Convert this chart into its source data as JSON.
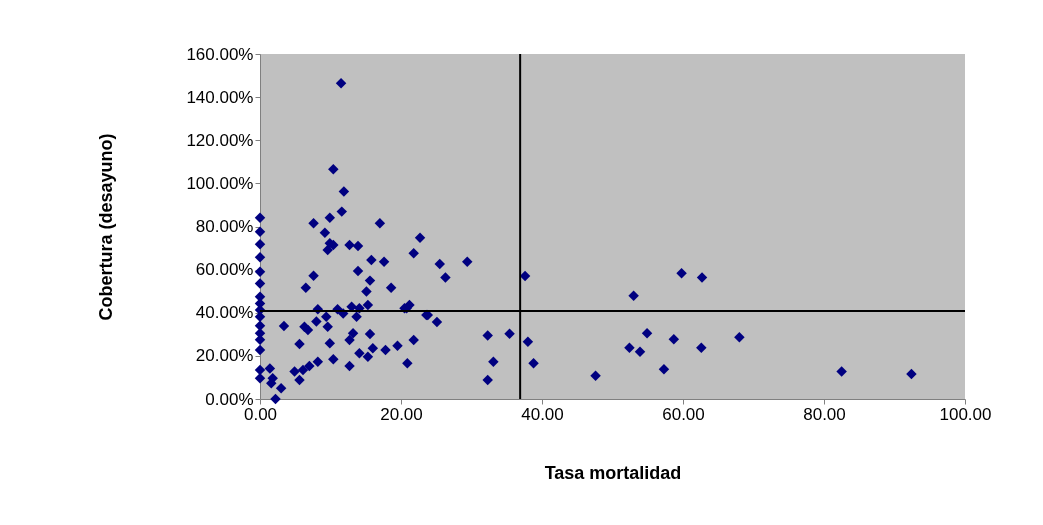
{
  "chart_data": {
    "type": "scatter",
    "xlabel": "Tasa mortalidad",
    "ylabel": "Cobertura (desayuno)",
    "x": [
      0,
      0,
      0,
      0,
      0,
      0,
      0,
      0,
      0,
      0,
      0,
      0,
      0,
      0,
      0,
      0,
      11.5,
      10.4,
      11.9,
      11.6,
      9.9,
      7.6,
      17.0,
      9.2,
      9.9,
      9.6,
      10.4,
      12.7,
      13.9,
      22.7,
      21.8,
      15.8,
      17.6,
      13.9,
      7.6,
      6.5,
      15.6,
      15.1,
      18.6,
      8.2,
      11.0,
      11.8,
      13.0,
      14.1,
      15.3,
      20.5,
      21.2,
      23.8,
      13.7,
      8.0,
      9.4,
      9.6,
      6.3,
      3.4,
      6.8,
      13.2,
      15.6,
      12.7,
      5.6,
      9.9,
      19.5,
      21.8,
      14.1,
      15.3,
      17.8,
      16.0,
      10.4,
      12.7,
      20.9,
      8.2,
      7.0,
      6.1,
      4.9,
      5.6,
      1.4,
      1.8,
      3.0,
      1.6,
      2.2,
      25.5,
      26.3,
      29.4,
      37.6,
      20.8,
      23.6,
      25.1,
      32.3,
      35.4,
      38.0,
      33.1,
      38.8,
      32.3,
      59.8,
      62.7,
      53.0,
      54.9,
      58.7,
      68.0,
      52.4,
      53.9,
      62.6,
      57.3,
      47.6,
      82.5,
      92.4
    ],
    "values": [
      84.1,
      77.6,
      71.8,
      65.7,
      59.0,
      53.6,
      47.4,
      44.3,
      41.3,
      38.2,
      34.0,
      30.5,
      27.5,
      22.7,
      13.5,
      9.6,
      146.4,
      106.5,
      96.2,
      86.9,
      84.1,
      81.5,
      81.5,
      77.1,
      72.2,
      69.1,
      71.4,
      71.4,
      71.0,
      74.8,
      67.6,
      64.5,
      63.7,
      59.4,
      57.2,
      51.6,
      54.9,
      49.8,
      51.6,
      41.6,
      41.6,
      39.7,
      42.8,
      42.1,
      43.6,
      42.1,
      43.6,
      39.0,
      38.2,
      35.9,
      38.2,
      33.5,
      33.5,
      33.9,
      32.0,
      30.5,
      30.1,
      27.4,
      25.5,
      25.8,
      24.7,
      27.4,
      21.2,
      19.6,
      22.7,
      23.5,
      18.4,
      15.3,
      16.6,
      17.3,
      15.3,
      13.5,
      12.7,
      8.8,
      14.2,
      9.6,
      5.0,
      7.3,
      0,
      62.6,
      56.3,
      63.7,
      57.0,
      42.1,
      39.0,
      35.7,
      29.4,
      30.3,
      26.6,
      17.3,
      16.6,
      8.8,
      58.3,
      56.3,
      47.9,
      30.5,
      27.7,
      28.6,
      23.8,
      21.9,
      23.8,
      13.8,
      10.8,
      12.7,
      11.6
    ],
    "color": "#000080",
    "marker": "diamond",
    "xlim": [
      0,
      100
    ],
    "xticks": [
      {
        "value": 0,
        "label": "0.00"
      },
      {
        "value": 20,
        "label": "20.00"
      },
      {
        "value": 40,
        "label": "40.00"
      },
      {
        "value": 60,
        "label": "60.00"
      },
      {
        "value": 80,
        "label": "80.00"
      },
      {
        "value": 100,
        "label": "100.00"
      }
    ],
    "ylim": [
      0,
      160
    ],
    "yticks": [
      {
        "value": 0,
        "label": "0.00%"
      },
      {
        "value": 20,
        "label": "20.00%"
      },
      {
        "value": 40,
        "label": "40.00%"
      },
      {
        "value": 60,
        "label": "60.00%"
      },
      {
        "value": 80,
        "label": "80.00%"
      },
      {
        "value": 100,
        "label": "100.00%"
      },
      {
        "value": 120,
        "label": "120.00%"
      },
      {
        "value": 140,
        "label": "140.00%"
      },
      {
        "value": 160,
        "label": "160.00%"
      }
    ],
    "ref_lines": [
      {
        "axis": "x",
        "value": 36.9,
        "color": "#000000"
      },
      {
        "axis": "y",
        "value": 40.8,
        "color": "#000000"
      }
    ],
    "grid": false
  }
}
